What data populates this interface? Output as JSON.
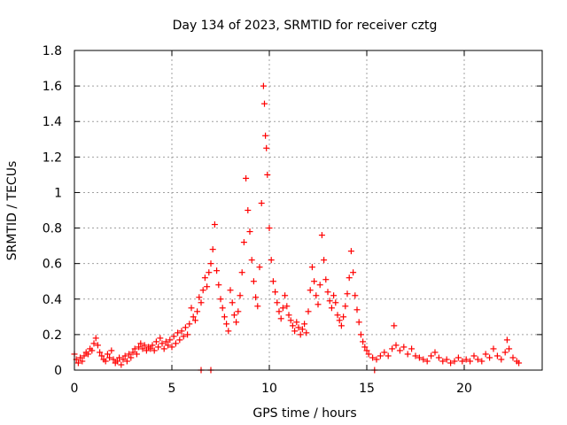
{
  "chart_data": {
    "type": "scatter",
    "title": "Day 134 of 2023, SRMTID for receiver cztg",
    "xlabel": "GPS time / hours",
    "ylabel": "SRMTID / TECUs",
    "xlim": [
      0,
      24
    ],
    "ylim": [
      0,
      1.8
    ],
    "xticks": [
      0,
      5,
      10,
      15,
      20
    ],
    "xtick_labels": [
      "0",
      "5",
      "10",
      "15",
      "20"
    ],
    "yticks": [
      0,
      0.2,
      0.4,
      0.6,
      0.8,
      1,
      1.2,
      1.4,
      1.6,
      1.8
    ],
    "ytick_labels": [
      "0",
      "0.2",
      "0.4",
      "0.6",
      "0.8",
      "1",
      "1.2",
      "1.4",
      "1.6",
      "1.8"
    ],
    "grid": true,
    "marker": "+",
    "color": "#ff0000",
    "series": [
      {
        "name": "SRMTID",
        "points": [
          [
            0.0,
            0.09
          ],
          [
            0.1,
            0.06
          ],
          [
            0.2,
            0.04
          ],
          [
            0.3,
            0.07
          ],
          [
            0.4,
            0.05
          ],
          [
            0.5,
            0.08
          ],
          [
            0.6,
            0.1
          ],
          [
            0.7,
            0.09
          ],
          [
            0.8,
            0.12
          ],
          [
            0.9,
            0.11
          ],
          [
            1.0,
            0.15
          ],
          [
            1.1,
            0.18
          ],
          [
            1.2,
            0.14
          ],
          [
            1.3,
            0.1
          ],
          [
            1.4,
            0.08
          ],
          [
            1.5,
            0.06
          ],
          [
            1.6,
            0.05
          ],
          [
            1.7,
            0.09
          ],
          [
            1.8,
            0.07
          ],
          [
            1.9,
            0.11
          ],
          [
            2.0,
            0.06
          ],
          [
            2.1,
            0.04
          ],
          [
            2.2,
            0.05
          ],
          [
            2.3,
            0.07
          ],
          [
            2.4,
            0.03
          ],
          [
            2.5,
            0.06
          ],
          [
            2.6,
            0.08
          ],
          [
            2.7,
            0.05
          ],
          [
            2.8,
            0.09
          ],
          [
            2.9,
            0.07
          ],
          [
            3.0,
            0.1
          ],
          [
            3.1,
            0.12
          ],
          [
            3.2,
            0.09
          ],
          [
            3.3,
            0.13
          ],
          [
            3.4,
            0.15
          ],
          [
            3.5,
            0.12
          ],
          [
            3.6,
            0.14
          ],
          [
            3.7,
            0.11
          ],
          [
            3.8,
            0.13
          ],
          [
            3.9,
            0.12
          ],
          [
            4.0,
            0.14
          ],
          [
            4.1,
            0.11
          ],
          [
            4.2,
            0.16
          ],
          [
            4.3,
            0.13
          ],
          [
            4.4,
            0.18
          ],
          [
            4.5,
            0.15
          ],
          [
            4.6,
            0.12
          ],
          [
            4.7,
            0.16
          ],
          [
            4.8,
            0.14
          ],
          [
            4.9,
            0.17
          ],
          [
            5.0,
            0.13
          ],
          [
            5.1,
            0.19
          ],
          [
            5.2,
            0.15
          ],
          [
            5.3,
            0.21
          ],
          [
            5.4,
            0.17
          ],
          [
            5.5,
            0.22
          ],
          [
            5.6,
            0.19
          ],
          [
            5.7,
            0.24
          ],
          [
            5.8,
            0.2
          ],
          [
            5.9,
            0.26
          ],
          [
            6.0,
            0.35
          ],
          [
            6.1,
            0.3
          ],
          [
            6.2,
            0.28
          ],
          [
            6.3,
            0.33
          ],
          [
            6.4,
            0.41
          ],
          [
            6.5,
            0.38
          ],
          [
            6.6,
            0.45
          ],
          [
            6.7,
            0.52
          ],
          [
            6.8,
            0.47
          ],
          [
            6.9,
            0.55
          ],
          [
            7.0,
            0.6
          ],
          [
            7.1,
            0.68
          ],
          [
            7.2,
            0.82
          ],
          [
            7.3,
            0.56
          ],
          [
            7.4,
            0.48
          ],
          [
            7.5,
            0.4
          ],
          [
            7.6,
            0.35
          ],
          [
            7.7,
            0.3
          ],
          [
            7.8,
            0.26
          ],
          [
            7.9,
            0.22
          ],
          [
            8.0,
            0.45
          ],
          [
            8.1,
            0.38
          ],
          [
            8.2,
            0.31
          ],
          [
            8.3,
            0.27
          ],
          [
            8.4,
            0.33
          ],
          [
            8.5,
            0.42
          ],
          [
            8.6,
            0.55
          ],
          [
            8.7,
            0.72
          ],
          [
            8.8,
            1.08
          ],
          [
            8.9,
            0.9
          ],
          [
            9.0,
            0.78
          ],
          [
            9.1,
            0.62
          ],
          [
            9.2,
            0.5
          ],
          [
            9.3,
            0.41
          ],
          [
            9.4,
            0.36
          ],
          [
            9.5,
            0.58
          ],
          [
            9.6,
            0.94
          ],
          [
            9.7,
            1.6
          ],
          [
            9.75,
            1.5
          ],
          [
            9.8,
            1.32
          ],
          [
            9.85,
            1.25
          ],
          [
            9.9,
            1.1
          ],
          [
            10.0,
            0.8
          ],
          [
            10.1,
            0.62
          ],
          [
            10.2,
            0.5
          ],
          [
            10.3,
            0.44
          ],
          [
            10.4,
            0.38
          ],
          [
            10.5,
            0.33
          ],
          [
            10.6,
            0.29
          ],
          [
            10.7,
            0.35
          ],
          [
            10.8,
            0.42
          ],
          [
            10.9,
            0.36
          ],
          [
            11.0,
            0.31
          ],
          [
            11.1,
            0.28
          ],
          [
            11.2,
            0.25
          ],
          [
            11.3,
            0.22
          ],
          [
            11.4,
            0.27
          ],
          [
            11.5,
            0.24
          ],
          [
            11.6,
            0.2
          ],
          [
            11.7,
            0.23
          ],
          [
            11.8,
            0.26
          ],
          [
            11.9,
            0.21
          ],
          [
            12.0,
            0.33
          ],
          [
            12.1,
            0.45
          ],
          [
            12.2,
            0.58
          ],
          [
            12.3,
            0.5
          ],
          [
            12.4,
            0.42
          ],
          [
            12.5,
            0.37
          ],
          [
            12.6,
            0.48
          ],
          [
            12.7,
            0.76
          ],
          [
            12.8,
            0.62
          ],
          [
            12.9,
            0.51
          ],
          [
            13.0,
            0.44
          ],
          [
            13.1,
            0.39
          ],
          [
            13.2,
            0.35
          ],
          [
            13.3,
            0.42
          ],
          [
            13.4,
            0.38
          ],
          [
            13.5,
            0.31
          ],
          [
            13.6,
            0.28
          ],
          [
            13.7,
            0.25
          ],
          [
            13.8,
            0.3
          ],
          [
            13.9,
            0.36
          ],
          [
            14.0,
            0.43
          ],
          [
            14.1,
            0.52
          ],
          [
            14.2,
            0.67
          ],
          [
            14.3,
            0.55
          ],
          [
            14.4,
            0.42
          ],
          [
            14.5,
            0.34
          ],
          [
            14.6,
            0.27
          ],
          [
            14.7,
            0.2
          ],
          [
            14.8,
            0.16
          ],
          [
            14.9,
            0.13
          ],
          [
            15.0,
            0.11
          ],
          [
            15.1,
            0.09
          ],
          [
            15.3,
            0.07
          ],
          [
            15.5,
            0.06
          ],
          [
            15.7,
            0.08
          ],
          [
            15.9,
            0.1
          ],
          [
            16.1,
            0.08
          ],
          [
            16.3,
            0.12
          ],
          [
            16.4,
            0.25
          ],
          [
            16.5,
            0.14
          ],
          [
            16.7,
            0.11
          ],
          [
            16.9,
            0.13
          ],
          [
            17.1,
            0.09
          ],
          [
            17.3,
            0.12
          ],
          [
            17.5,
            0.08
          ],
          [
            17.7,
            0.07
          ],
          [
            17.9,
            0.06
          ],
          [
            18.1,
            0.05
          ],
          [
            18.3,
            0.08
          ],
          [
            18.5,
            0.1
          ],
          [
            18.7,
            0.07
          ],
          [
            18.9,
            0.05
          ],
          [
            19.1,
            0.06
          ],
          [
            19.3,
            0.04
          ],
          [
            19.5,
            0.05
          ],
          [
            19.7,
            0.07
          ],
          [
            19.9,
            0.05
          ],
          [
            20.1,
            0.06
          ],
          [
            20.3,
            0.05
          ],
          [
            20.5,
            0.08
          ],
          [
            20.7,
            0.06
          ],
          [
            20.9,
            0.05
          ],
          [
            21.1,
            0.09
          ],
          [
            21.3,
            0.07
          ],
          [
            21.5,
            0.12
          ],
          [
            21.7,
            0.08
          ],
          [
            21.9,
            0.06
          ],
          [
            22.1,
            0.1
          ],
          [
            22.2,
            0.17
          ],
          [
            22.3,
            0.12
          ],
          [
            22.5,
            0.07
          ],
          [
            22.7,
            0.05
          ],
          [
            22.8,
            0.04
          ],
          [
            6.5,
            0.0
          ],
          [
            7.0,
            0.0
          ],
          [
            15.4,
            0.0
          ]
        ]
      }
    ]
  }
}
